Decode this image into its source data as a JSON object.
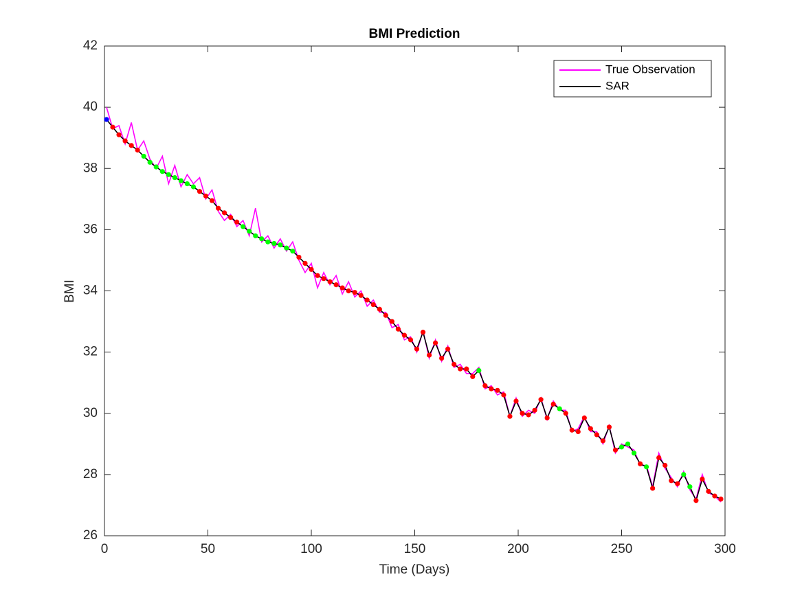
{
  "chart_data": {
    "type": "line",
    "title": "BMI Prediction",
    "xlabel": "Time (Days)",
    "ylabel": "BMI",
    "xlim": [
      0,
      300
    ],
    "ylim": [
      26,
      42
    ],
    "xticks": [
      0,
      50,
      100,
      150,
      200,
      250,
      300
    ],
    "yticks": [
      26,
      28,
      30,
      32,
      34,
      36,
      38,
      40,
      42
    ],
    "legend": "top-right",
    "x": [
      1,
      4,
      7,
      10,
      13,
      16,
      19,
      22,
      25,
      28,
      31,
      34,
      37,
      40,
      43,
      46,
      49,
      52,
      55,
      58,
      61,
      64,
      67,
      70,
      73,
      76,
      79,
      82,
      85,
      88,
      91,
      94,
      97,
      100,
      103,
      106,
      109,
      112,
      115,
      118,
      121,
      124,
      127,
      130,
      133,
      136,
      139,
      142,
      145,
      148,
      151,
      154,
      157,
      160,
      163,
      166,
      169,
      172,
      175,
      178,
      181,
      184,
      187,
      190,
      193,
      196,
      199,
      202,
      205,
      208,
      211,
      214,
      217,
      220,
      223,
      226,
      229,
      232,
      235,
      238,
      241,
      244,
      247,
      250,
      253,
      256,
      259,
      262,
      265,
      268,
      271,
      274,
      277,
      280,
      283,
      286,
      289,
      292,
      295,
      298
    ],
    "series": [
      {
        "name": "True Observation",
        "color": "#ff00ff",
        "values": [
          40.0,
          39.3,
          39.4,
          38.8,
          39.5,
          38.6,
          38.9,
          38.3,
          38.0,
          38.4,
          37.5,
          38.1,
          37.4,
          37.8,
          37.5,
          37.7,
          37.0,
          37.3,
          36.6,
          36.3,
          36.5,
          36.1,
          36.3,
          35.8,
          36.7,
          35.6,
          35.8,
          35.4,
          35.7,
          35.3,
          35.6,
          35.0,
          34.6,
          34.9,
          34.1,
          34.6,
          34.2,
          34.5,
          33.9,
          34.3,
          33.8,
          34.0,
          33.5,
          33.7,
          33.3,
          33.3,
          32.8,
          32.9,
          32.4,
          32.5,
          32.0,
          32.7,
          31.8,
          32.4,
          31.7,
          32.2,
          31.5,
          31.6,
          31.3,
          31.3,
          31.5,
          30.8,
          30.9,
          30.6,
          30.7,
          29.9,
          30.5,
          29.9,
          30.1,
          30.0,
          30.5,
          29.8,
          30.4,
          30.1,
          30.1,
          29.4,
          29.5,
          29.9,
          29.4,
          29.4,
          29.0,
          29.6,
          28.7,
          29.0,
          28.9,
          28.8,
          28.3,
          28.3,
          27.6,
          28.7,
          28.2,
          27.9,
          27.6,
          28.1,
          27.5,
          27.2,
          28.0,
          27.4,
          27.3,
          27.1
        ]
      },
      {
        "name": "SAR",
        "color": "#000000",
        "marker_color": "#ff0000",
        "marker_segments": [
          {
            "color": "#0000ff",
            "from": 1,
            "to": 1
          },
          {
            "color": "#00ff00",
            "from": 19,
            "to": 43
          },
          {
            "color": "#00ff00",
            "from": 67,
            "to": 91
          },
          {
            "color": "#00ff00",
            "from": 181,
            "to": 181
          },
          {
            "color": "#00ff00",
            "from": 220,
            "to": 220
          },
          {
            "color": "#00ff00",
            "from": 250,
            "to": 256
          },
          {
            "color": "#00ff00",
            "from": 262,
            "to": 262
          },
          {
            "color": "#00ff00",
            "from": 280,
            "to": 283
          }
        ],
        "values": [
          39.6,
          39.35,
          39.1,
          38.9,
          38.75,
          38.6,
          38.4,
          38.2,
          38.05,
          37.9,
          37.8,
          37.7,
          37.6,
          37.5,
          37.4,
          37.25,
          37.1,
          36.95,
          36.7,
          36.55,
          36.4,
          36.25,
          36.1,
          35.95,
          35.8,
          35.7,
          35.6,
          35.55,
          35.5,
          35.4,
          35.3,
          35.1,
          34.9,
          34.7,
          34.5,
          34.4,
          34.3,
          34.2,
          34.1,
          34.0,
          33.95,
          33.85,
          33.7,
          33.55,
          33.4,
          33.2,
          33.0,
          32.75,
          32.55,
          32.4,
          32.1,
          32.65,
          31.9,
          32.3,
          31.8,
          32.1,
          31.6,
          31.45,
          31.45,
          31.2,
          31.4,
          30.9,
          30.8,
          30.75,
          30.6,
          29.9,
          30.4,
          30.0,
          29.95,
          30.1,
          30.45,
          29.85,
          30.3,
          30.15,
          30.0,
          29.45,
          29.4,
          29.85,
          29.5,
          29.3,
          29.1,
          29.55,
          28.8,
          28.9,
          29.0,
          28.7,
          28.35,
          28.25,
          27.55,
          28.55,
          28.3,
          27.8,
          27.7,
          28.0,
          27.6,
          27.15,
          27.85,
          27.45,
          27.3,
          27.2
        ]
      }
    ]
  }
}
